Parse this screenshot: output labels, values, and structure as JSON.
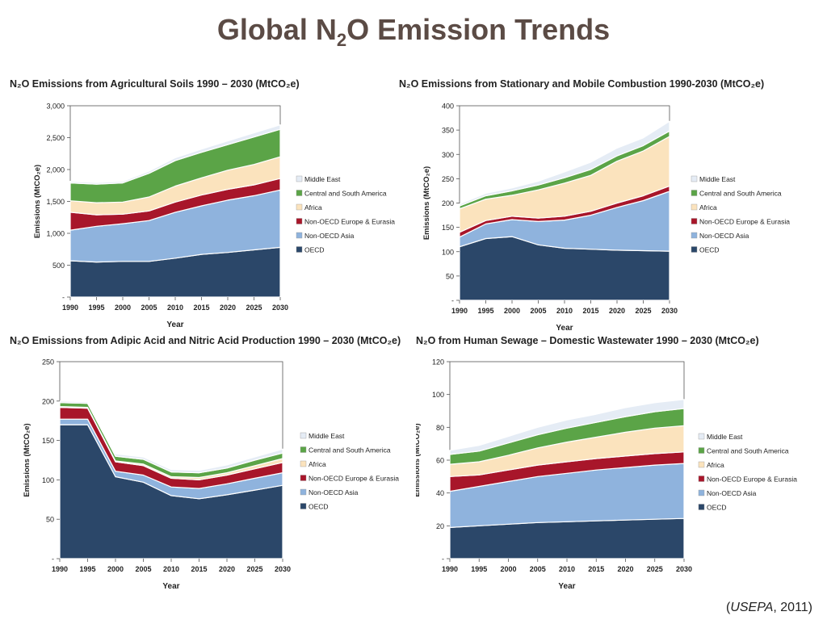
{
  "page": {
    "title_main": "Global N",
    "title_sub": "2",
    "title_rest": "O Emission Trends",
    "citation_source": "USEPA",
    "citation_year": ", 2011"
  },
  "colors": {
    "OECD": "#2b4769",
    "Non-OECD Asia": "#8fb3dd",
    "Non-OECD Europe & Eurasia": "#a8162a",
    "Africa": "#fbe3bd",
    "Central and South America": "#5ba447",
    "Middle East": "#e5ecf5"
  },
  "chart_data": [
    {
      "type": "area",
      "title": "N₂O Emissions from Agricultural Soils 1990 – 2030 (MtCO₂e)",
      "xlabel": "Year",
      "ylabel": "Emissions (MtCO₂e)",
      "x": [
        1990,
        1995,
        2000,
        2005,
        2010,
        2015,
        2020,
        2025,
        2030
      ],
      "yticks": [
        "-",
        "500",
        "1,000",
        "1,500",
        "2,000",
        "2,500",
        "3,000"
      ],
      "ylim": [
        0,
        3000
      ],
      "series": [
        {
          "name": "OECD",
          "values": [
            570,
            550,
            560,
            560,
            610,
            670,
            700,
            740,
            780
          ]
        },
        {
          "name": "Non-OECD Asia",
          "values": [
            480,
            560,
            590,
            640,
            720,
            760,
            820,
            850,
            900
          ]
        },
        {
          "name": "Non-OECD Europe & Eurasia",
          "values": [
            280,
            180,
            150,
            150,
            160,
            170,
            170,
            170,
            180
          ]
        },
        {
          "name": "Africa",
          "values": [
            180,
            190,
            190,
            220,
            250,
            270,
            300,
            320,
            340
          ]
        },
        {
          "name": "Central and South America",
          "values": [
            280,
            290,
            300,
            370,
            400,
            400,
            400,
            430,
            430
          ]
        },
        {
          "name": "Middle East",
          "values": [
            25,
            25,
            25,
            35,
            45,
            50,
            60,
            65,
            70
          ]
        }
      ]
    },
    {
      "type": "area",
      "title": "N₂O Emissions from Stationary and Mobile Combustion 1990-2030 (MtCO₂e)",
      "xlabel": "Year",
      "ylabel": "Emissions (MtCO₂e)",
      "x": [
        1990,
        1995,
        2000,
        2005,
        2010,
        2015,
        2020,
        2025,
        2030
      ],
      "yticks": [
        "-",
        "50",
        "100",
        "150",
        "200",
        "250",
        "300",
        "350",
        "400"
      ],
      "ylim": [
        0,
        400
      ],
      "series": [
        {
          "name": "OECD",
          "values": [
            110,
            127,
            131,
            114,
            107,
            105,
            103,
            102,
            101
          ]
        },
        {
          "name": "Non-OECD Asia",
          "values": [
            20,
            30,
            35,
            48,
            58,
            70,
            88,
            103,
            123
          ]
        },
        {
          "name": "Non-OECD Europe & Eurasia",
          "values": [
            10,
            7,
            7,
            7,
            8,
            8,
            9,
            10,
            11
          ]
        },
        {
          "name": "Africa",
          "values": [
            48,
            44,
            43,
            58,
            68,
            74,
            86,
            92,
            102
          ]
        },
        {
          "name": "Central and South America",
          "values": [
            6,
            7,
            9,
            10,
            11,
            12,
            11,
            11,
            11
          ]
        },
        {
          "name": "Middle East",
          "values": [
            4,
            5,
            6,
            8,
            12,
            15,
            16,
            16,
            20
          ]
        }
      ]
    },
    {
      "type": "area",
      "title": "N₂O Emissions from Adipic Acid and Nitric Acid Production 1990 – 2030 (MtCO₂e)",
      "xlabel": "Year",
      "ylabel": "Emissions (MtCO₂e)",
      "x": [
        1990,
        1995,
        2000,
        2005,
        2010,
        2015,
        2020,
        2025,
        2030
      ],
      "yticks": [
        "-",
        "50",
        "100",
        "150",
        "200",
        "250"
      ],
      "ylim": [
        0,
        250
      ],
      "series": [
        {
          "name": "OECD",
          "values": [
            170,
            170,
            104,
            97,
            80,
            76,
            81,
            87,
            93
          ]
        },
        {
          "name": "Non-OECD Asia",
          "values": [
            7,
            7,
            7,
            9,
            11,
            13,
            14,
            15,
            16
          ]
        },
        {
          "name": "Non-OECD Europe & Eurasia",
          "values": [
            15,
            14,
            12,
            12,
            11,
            11,
            11,
            12,
            13
          ]
        },
        {
          "name": "Africa",
          "values": [
            1,
            1,
            1,
            2,
            2,
            3,
            3,
            4,
            5
          ]
        },
        {
          "name": "Central and South America",
          "values": [
            5,
            5,
            6,
            6,
            6,
            6,
            6,
            7,
            7
          ]
        },
        {
          "name": "Middle East",
          "values": [
            2,
            2,
            3,
            3,
            3,
            3,
            4,
            4,
            5
          ]
        }
      ]
    },
    {
      "type": "area",
      "title": "N₂O from Human Sewage – Domestic Wastewater 1990 – 2030 (MtCO₂e)",
      "xlabel": "Year",
      "ylabel": "Emissions (MtCO₂e)",
      "x": [
        1990,
        1995,
        2000,
        2005,
        2010,
        2015,
        2020,
        2025,
        2030
      ],
      "yticks": [
        "-",
        "20",
        "40",
        "60",
        "80",
        "100",
        "120"
      ],
      "ylim": [
        0,
        120
      ],
      "series": [
        {
          "name": "OECD",
          "values": [
            19,
            20,
            21,
            22,
            22.5,
            23,
            23.5,
            24,
            24.5
          ]
        },
        {
          "name": "Non-OECD Asia",
          "values": [
            22,
            24,
            26,
            28,
            29.5,
            31,
            32,
            33,
            33.5
          ]
        },
        {
          "name": "Non-OECD Europe & Eurasia",
          "values": [
            9,
            7,
            7,
            7,
            7,
            7,
            7,
            7,
            7
          ]
        },
        {
          "name": "Africa",
          "values": [
            7.5,
            8,
            9,
            10.5,
            12,
            13,
            14.5,
            15.5,
            16
          ]
        },
        {
          "name": "Central and South America",
          "values": [
            6,
            6.5,
            7.5,
            8,
            8.5,
            9,
            9.5,
            10,
            10.5
          ]
        },
        {
          "name": "Middle East",
          "values": [
            2.5,
            3.5,
            4,
            4.5,
            5,
            5,
            5.5,
            5.5,
            5.5
          ]
        }
      ]
    }
  ]
}
